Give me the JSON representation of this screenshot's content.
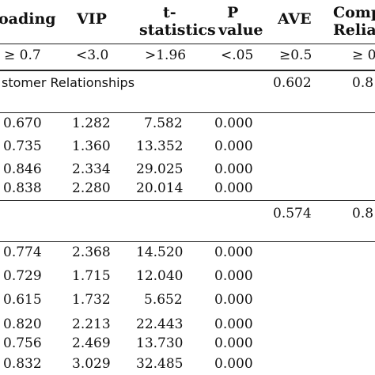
{
  "header": {
    "loading": "oading",
    "vip": "VIP",
    "t_line1": "t-",
    "t_line2": "statistics",
    "p_line1": "P",
    "p_line2": "value",
    "ave": "AVE",
    "comp_line1": "Comp",
    "comp_line2": "Relia"
  },
  "thresholds": {
    "loading": "≥ 0.7",
    "vip": "<3.0",
    "t": ">1.96",
    "p": "<.05",
    "ave": "≥0.5",
    "comp": "≥ 0"
  },
  "section1": {
    "title": "stomer Relationships",
    "ave": "0.602",
    "comp": "0.8"
  },
  "section2": {
    "ave": "0.574",
    "comp": "0.8"
  },
  "rows": [
    {
      "loading": "0.670",
      "vip": "1.282",
      "t": "7.582",
      "p": "0.000"
    },
    {
      "loading": "0.735",
      "vip": "1.360",
      "t": "13.352",
      "p": "0.000"
    },
    {
      "loading": "0.846",
      "vip": "2.334",
      "t": "29.025",
      "p": "0.000"
    },
    {
      "loading": "0.838",
      "vip": "2.280",
      "t": "20.014",
      "p": "0.000"
    },
    {
      "loading": "0.774",
      "vip": "2.368",
      "t": "14.520",
      "p": "0.000"
    },
    {
      "loading": "0.729",
      "vip": "1.715",
      "t": "12.040",
      "p": "0.000"
    },
    {
      "loading": "0.615",
      "vip": "1.732",
      "t": "5.652",
      "p": "0.000"
    },
    {
      "loading": "0.820",
      "vip": "2.213",
      "t": "22.443",
      "p": "0.000"
    },
    {
      "loading": "0.756",
      "vip": "2.469",
      "t": "13.730",
      "p": "0.000"
    },
    {
      "loading": "0.832",
      "vip": "3.029",
      "t": "32.485",
      "p": "0.000"
    }
  ]
}
